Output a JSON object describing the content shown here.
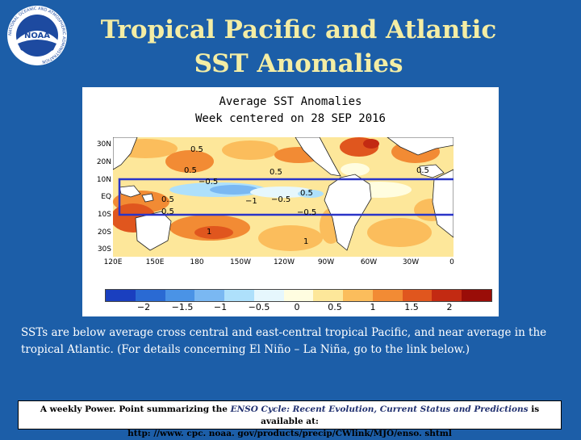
{
  "header": {
    "title_line1": "Tropical Pacific and Atlantic",
    "title_line2": "SST Anomalies",
    "logo_text": "NOAA",
    "logo_ring_text": "NATIONAL OCEANIC AND ATMOSPHERIC ADMINISTRATION"
  },
  "map": {
    "title_line1": "Average SST Anomalies",
    "title_line2": "Week centered on 28 SEP 2016",
    "lat_labels": [
      "30N",
      "20N",
      "10N",
      "EQ",
      "10S",
      "20S",
      "30S"
    ],
    "lon_labels": [
      "120E",
      "150E",
      "180",
      "150W",
      "120W",
      "90W",
      "60W",
      "30W",
      "0"
    ],
    "contour_labels": [
      "0.5",
      "0.5",
      "0.5",
      "−0.5",
      "0.5",
      "−1",
      "−0.5",
      "0.5",
      "0.5",
      "−0.5",
      "1",
      "1",
      "0.5"
    ],
    "highlight_box_color": "#2a35c8",
    "colorbar": {
      "colors": [
        "#1a3fbf",
        "#2a6ad3",
        "#4a93e6",
        "#7ab8f2",
        "#aee0fb",
        "#e6f7fd",
        "#fffde0",
        "#fde79a",
        "#fbbd5c",
        "#f28b34",
        "#e0561e",
        "#c32a12",
        "#9a0d08"
      ],
      "labels": [
        "−2",
        "−1.5",
        "−1",
        "−0.5",
        "0",
        "0.5",
        "1",
        "1.5",
        "2"
      ]
    }
  },
  "description": "SSTs are below average cross central and east-central tropical Pacific, and near average in the tropical Atlantic. (For details concerning El Niño – La Niña, go to the link below.)",
  "footer": {
    "pre": "A weekly Power. Point summarizing the ",
    "italic": "ENSO Cycle: Recent Evolution, Current Status and Predictions",
    "post": " is available at:",
    "url": "http: //www. cpc. noaa. gov/products/precip/CWlink/MJO/enso. shtml"
  }
}
